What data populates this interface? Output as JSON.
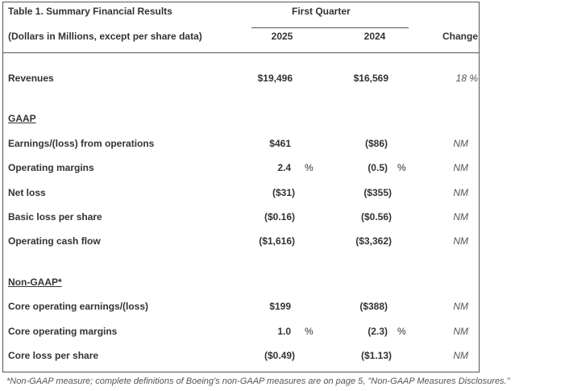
{
  "table": {
    "title": "Table 1. Summary Financial Results",
    "subtitle": "(Dollars in Millions, except per share data)",
    "period_header": "First Quarter",
    "col_2025": "2025",
    "col_2024": "2024",
    "col_change": "Change",
    "revenues": {
      "label": "Revenues",
      "v2025": "$19,496",
      "v2024": "$16,569",
      "change": "18 %"
    },
    "gaap_label": "GAAP",
    "gaap_rows": [
      {
        "label": "Earnings/(loss) from operations",
        "v2025": "$461",
        "pct2025": "",
        "v2024": "($86)",
        "pct2024": "",
        "change": "NM"
      },
      {
        "label": "Operating margins",
        "v2025": "2.4",
        "pct2025": "%",
        "v2024": "(0.5)",
        "pct2024": "%",
        "change": "NM"
      },
      {
        "label": "Net loss",
        "v2025": "($31)",
        "pct2025": "",
        "v2024": "($355)",
        "pct2024": "",
        "change": "NM"
      },
      {
        "label": "Basic loss per share",
        "v2025": "($0.16)",
        "pct2025": "",
        "v2024": "($0.56)",
        "pct2024": "",
        "change": "NM"
      },
      {
        "label": "Operating cash flow",
        "v2025": "($1,616)",
        "pct2025": "",
        "v2024": "($3,362)",
        "pct2024": "",
        "change": "NM"
      }
    ],
    "nongaap_label": "Non-GAAP*",
    "nongaap_rows": [
      {
        "label": "Core operating earnings/(loss)",
        "v2025": "$199",
        "pct2025": "",
        "v2024": "($388)",
        "pct2024": "",
        "change": "NM"
      },
      {
        "label": "Core operating margins",
        "v2025": "1.0",
        "pct2025": "%",
        "v2024": "(2.3)",
        "pct2024": "%",
        "change": "NM"
      },
      {
        "label": "Core loss per share",
        "v2025": "($0.49)",
        "pct2025": "",
        "v2024": "($1.13)",
        "pct2024": "",
        "change": "NM"
      }
    ]
  },
  "footnote": "*Non-GAAP measure; complete definitions of Boeing’s non-GAAP measures are on page 5, \"Non-GAAP Measures Disclosures.\""
}
